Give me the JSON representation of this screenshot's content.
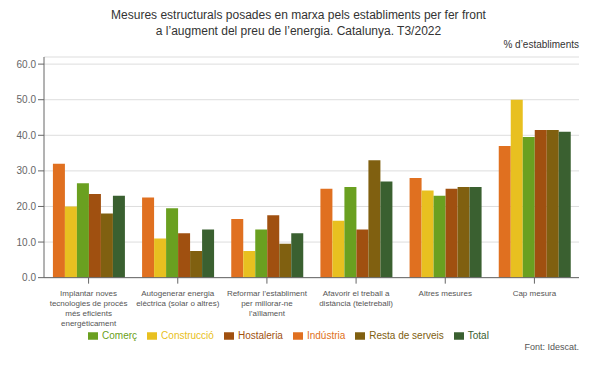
{
  "chart_data": {
    "type": "bar",
    "title": "Mesures estructurals posades en marxa pels establiments per fer front\na l’augment del preu de l’energia. Catalunya. T3/2022",
    "ylabel": "% d’establiments",
    "source": "Font: Idescat.",
    "categories": [
      "Implantar noves\ntecnologies de procés\nmés eficients\nenergèticament",
      "Autogenerar energia\nelèctrica (solar o altres)",
      "Reformar l’establiment\nper millorar-ne\nl’aïllament",
      "Afavorir el treball a\ndistància (teletreball)",
      "Altres mesures",
      "Cap mesura"
    ],
    "series": [
      {
        "name": "Indústria",
        "color": "#E07020",
        "values": [
          32.0,
          22.5,
          16.5,
          25.0,
          28.0,
          37.0
        ]
      },
      {
        "name": "Construcció",
        "color": "#E8C020",
        "values": [
          20.0,
          11.0,
          7.5,
          16.0,
          24.5,
          50.0
        ]
      },
      {
        "name": "Comerç",
        "color": "#6AA020",
        "values": [
          26.5,
          19.5,
          13.5,
          25.5,
          23.0,
          39.5
        ]
      },
      {
        "name": "Hostaleria",
        "color": "#A05010",
        "values": [
          23.5,
          12.5,
          17.5,
          13.5,
          25.0,
          41.5
        ]
      },
      {
        "name": "Resta de serveis",
        "color": "#806010",
        "values": [
          18.0,
          7.5,
          9.5,
          33.0,
          25.5,
          41.5
        ]
      },
      {
        "name": "Total",
        "color": "#3A6030",
        "values": [
          23.0,
          13.5,
          12.5,
          27.0,
          25.5,
          41.0
        ]
      }
    ],
    "ylim": [
      0,
      62
    ],
    "yticks": [
      {
        "value": 0,
        "label": "0.0"
      },
      {
        "value": 10,
        "label": "10.0"
      },
      {
        "value": 20,
        "label": "20.0"
      },
      {
        "value": 30,
        "label": "30.0"
      },
      {
        "value": 40,
        "label": "40.0"
      },
      {
        "value": 50,
        "label": "50.0"
      },
      {
        "value": 60,
        "label": "60.0"
      }
    ],
    "grid": true,
    "legend": "bottom"
  }
}
